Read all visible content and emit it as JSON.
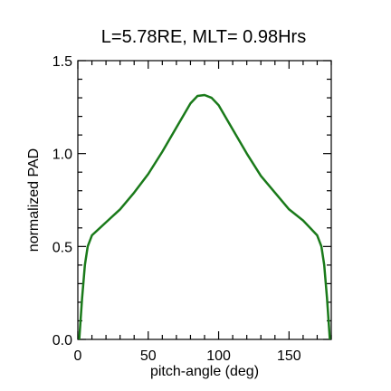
{
  "chart_data": {
    "type": "line",
    "title": "L=5.78RE, MLT= 0.98Hrs",
    "xlabel": "pitch-angle (deg)",
    "ylabel": "normalized PAD",
    "xlim": [
      0,
      180
    ],
    "ylim": [
      0,
      1.5
    ],
    "xticks": [
      "0",
      "50",
      "100",
      "150"
    ],
    "xtick_values": [
      0,
      50,
      100,
      150
    ],
    "yticks": [
      "0.0",
      "0.5",
      "1.0",
      "1.5"
    ],
    "ytick_values": [
      0,
      0.5,
      1.0,
      1.5
    ],
    "grid": false,
    "series": [
      {
        "color": "#1a7a1a",
        "x": [
          1,
          3,
          5,
          7,
          10,
          20,
          30,
          40,
          50,
          60,
          70,
          80,
          85,
          90,
          95,
          100,
          110,
          120,
          130,
          140,
          150,
          160,
          170,
          173,
          175,
          177,
          179
        ],
        "y": [
          0.0,
          0.22,
          0.4,
          0.5,
          0.56,
          0.63,
          0.7,
          0.79,
          0.89,
          1.01,
          1.14,
          1.27,
          1.31,
          1.315,
          1.3,
          1.26,
          1.13,
          1.0,
          0.88,
          0.79,
          0.7,
          0.64,
          0.56,
          0.5,
          0.4,
          0.22,
          0.0
        ]
      }
    ]
  }
}
